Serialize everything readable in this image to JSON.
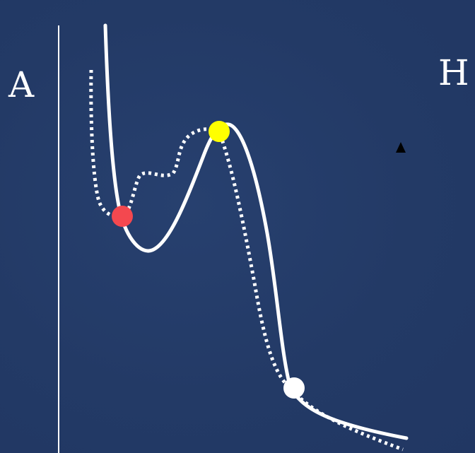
{
  "labels": {
    "left": "A",
    "right": "H"
  },
  "colors": {
    "background": "#233a66",
    "curve": "#ffffff",
    "marker_red": "#f4484f",
    "marker_yellow": "#ffff00",
    "marker_white": "#ffffff",
    "small_triangle": "#000000"
  },
  "markers": [
    "red-dot",
    "yellow-dot",
    "white-dot"
  ],
  "curves": [
    "solid-energy-curve",
    "dotted-energy-curve"
  ]
}
